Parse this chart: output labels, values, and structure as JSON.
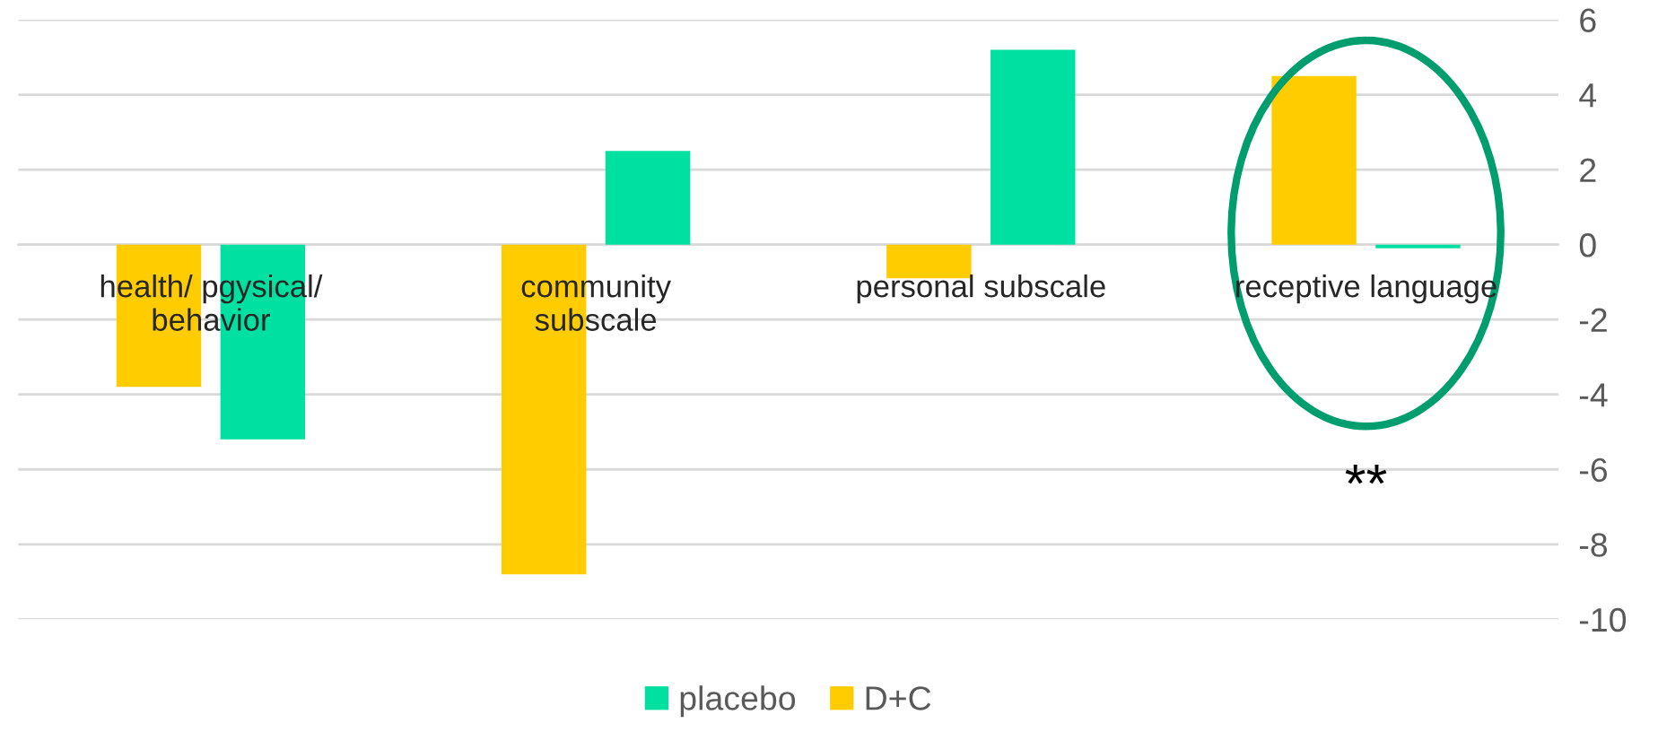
{
  "chart_data": {
    "type": "bar",
    "categories": [
      "health/ pgysical/\nbehavior",
      "community\nsubscale",
      "personal subscale",
      "receptive language"
    ],
    "series": [
      {
        "name": "D+C",
        "color": "#ffcc00",
        "values": [
          -3.8,
          -8.8,
          -0.9,
          4.5
        ]
      },
      {
        "name": "placebo",
        "color": "#00e0a0",
        "values": [
          -5.2,
          2.5,
          5.2,
          -0.1
        ]
      }
    ],
    "ylim": [
      -10,
      6
    ],
    "yticks": [
      -10,
      -8,
      -6,
      -4,
      -2,
      0,
      2,
      4,
      6
    ],
    "grid": "y",
    "legend": "bottom",
    "annotations": [
      "**"
    ]
  }
}
